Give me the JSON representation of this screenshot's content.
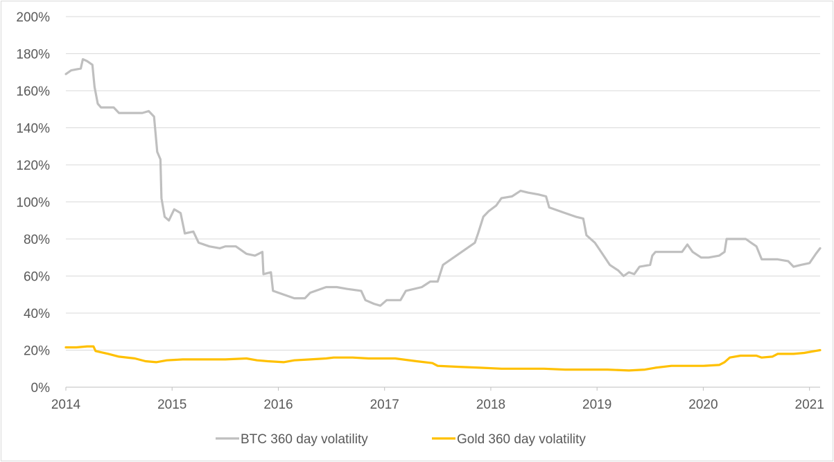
{
  "chart_data": {
    "type": "line",
    "title": "",
    "xlabel": "",
    "ylabel": "",
    "xlim": [
      2014.0,
      2021.1
    ],
    "ylim": [
      0,
      200
    ],
    "y_ticks": [
      "0%",
      "20%",
      "40%",
      "60%",
      "80%",
      "100%",
      "120%",
      "140%",
      "160%",
      "180%",
      "200%"
    ],
    "x_ticks": [
      "2014",
      "2015",
      "2016",
      "2017",
      "2018",
      "2019",
      "2020",
      "2021"
    ],
    "grid": "horizontal",
    "legend_position": "bottom",
    "series": [
      {
        "name": "BTC 360 day volatility",
        "color": "#bfbfbf",
        "points": [
          [
            2014.0,
            169
          ],
          [
            2014.05,
            171
          ],
          [
            2014.14,
            172
          ],
          [
            2014.16,
            177
          ],
          [
            2014.2,
            176
          ],
          [
            2014.25,
            174
          ],
          [
            2014.27,
            162
          ],
          [
            2014.3,
            153
          ],
          [
            2014.33,
            151
          ],
          [
            2014.45,
            151
          ],
          [
            2014.5,
            148
          ],
          [
            2014.6,
            148
          ],
          [
            2014.72,
            148
          ],
          [
            2014.78,
            149
          ],
          [
            2014.83,
            146
          ],
          [
            2014.86,
            127
          ],
          [
            2014.89,
            123
          ],
          [
            2014.9,
            102
          ],
          [
            2014.93,
            92
          ],
          [
            2014.97,
            90
          ],
          [
            2015.02,
            96
          ],
          [
            2015.08,
            94
          ],
          [
            2015.12,
            83
          ],
          [
            2015.2,
            84
          ],
          [
            2015.25,
            78
          ],
          [
            2015.35,
            76
          ],
          [
            2015.45,
            75
          ],
          [
            2015.5,
            76
          ],
          [
            2015.6,
            76
          ],
          [
            2015.7,
            72
          ],
          [
            2015.78,
            71
          ],
          [
            2015.85,
            73
          ],
          [
            2015.86,
            61
          ],
          [
            2015.93,
            62
          ],
          [
            2015.95,
            52
          ],
          [
            2016.05,
            50
          ],
          [
            2016.15,
            48
          ],
          [
            2016.25,
            48
          ],
          [
            2016.3,
            51
          ],
          [
            2016.45,
            54
          ],
          [
            2016.55,
            54
          ],
          [
            2016.65,
            53
          ],
          [
            2016.78,
            52
          ],
          [
            2016.82,
            47
          ],
          [
            2016.9,
            45
          ],
          [
            2016.96,
            44
          ],
          [
            2017.02,
            47
          ],
          [
            2017.15,
            47
          ],
          [
            2017.2,
            52
          ],
          [
            2017.35,
            54
          ],
          [
            2017.43,
            57
          ],
          [
            2017.5,
            57
          ],
          [
            2017.55,
            66
          ],
          [
            2017.7,
            72
          ],
          [
            2017.85,
            78
          ],
          [
            2017.88,
            83
          ],
          [
            2017.93,
            92
          ],
          [
            2017.98,
            95
          ],
          [
            2018.05,
            98
          ],
          [
            2018.1,
            102
          ],
          [
            2018.2,
            103
          ],
          [
            2018.28,
            106
          ],
          [
            2018.35,
            105
          ],
          [
            2018.45,
            104
          ],
          [
            2018.52,
            103
          ],
          [
            2018.55,
            97
          ],
          [
            2018.7,
            94
          ],
          [
            2018.8,
            92
          ],
          [
            2018.87,
            91
          ],
          [
            2018.9,
            82
          ],
          [
            2018.98,
            78
          ],
          [
            2019.05,
            72
          ],
          [
            2019.12,
            66
          ],
          [
            2019.2,
            63
          ],
          [
            2019.25,
            60
          ],
          [
            2019.3,
            62
          ],
          [
            2019.35,
            61
          ],
          [
            2019.4,
            65
          ],
          [
            2019.5,
            66
          ],
          [
            2019.52,
            71
          ],
          [
            2019.55,
            73
          ],
          [
            2019.7,
            73
          ],
          [
            2019.8,
            73
          ],
          [
            2019.85,
            77
          ],
          [
            2019.9,
            73
          ],
          [
            2019.98,
            70
          ],
          [
            2020.05,
            70
          ],
          [
            2020.15,
            71
          ],
          [
            2020.2,
            73
          ],
          [
            2020.22,
            80
          ],
          [
            2020.3,
            80
          ],
          [
            2020.4,
            80
          ],
          [
            2020.45,
            78
          ],
          [
            2020.5,
            76
          ],
          [
            2020.55,
            69
          ],
          [
            2020.7,
            69
          ],
          [
            2020.8,
            68
          ],
          [
            2020.85,
            65
          ],
          [
            2020.92,
            66
          ],
          [
            2021.0,
            67
          ],
          [
            2021.06,
            72
          ],
          [
            2021.1,
            75
          ]
        ]
      },
      {
        "name": "Gold 360 day volatility",
        "color": "#ffc000",
        "points": [
          [
            2014.0,
            21.5
          ],
          [
            2014.1,
            21.5
          ],
          [
            2014.2,
            22
          ],
          [
            2014.26,
            22
          ],
          [
            2014.28,
            19.5
          ],
          [
            2014.4,
            18
          ],
          [
            2014.5,
            16.5
          ],
          [
            2014.65,
            15.5
          ],
          [
            2014.75,
            14
          ],
          [
            2014.85,
            13.5
          ],
          [
            2014.95,
            14.5
          ],
          [
            2015.1,
            15
          ],
          [
            2015.3,
            15
          ],
          [
            2015.5,
            15
          ],
          [
            2015.7,
            15.5
          ],
          [
            2015.8,
            14.5
          ],
          [
            2015.9,
            14
          ],
          [
            2016.05,
            13.5
          ],
          [
            2016.15,
            14.5
          ],
          [
            2016.3,
            15
          ],
          [
            2016.45,
            15.5
          ],
          [
            2016.52,
            16
          ],
          [
            2016.7,
            16
          ],
          [
            2016.85,
            15.5
          ],
          [
            2017.1,
            15.5
          ],
          [
            2017.3,
            14
          ],
          [
            2017.45,
            13
          ],
          [
            2017.5,
            11.5
          ],
          [
            2017.7,
            11
          ],
          [
            2017.9,
            10.5
          ],
          [
            2018.1,
            10
          ],
          [
            2018.3,
            10
          ],
          [
            2018.5,
            10
          ],
          [
            2018.7,
            9.5
          ],
          [
            2018.9,
            9.5
          ],
          [
            2019.1,
            9.5
          ],
          [
            2019.3,
            9
          ],
          [
            2019.45,
            9.5
          ],
          [
            2019.55,
            10.5
          ],
          [
            2019.7,
            11.5
          ],
          [
            2019.85,
            11.5
          ],
          [
            2020.0,
            11.5
          ],
          [
            2020.15,
            12
          ],
          [
            2020.2,
            13.5
          ],
          [
            2020.25,
            16
          ],
          [
            2020.35,
            17
          ],
          [
            2020.5,
            17
          ],
          [
            2020.55,
            16
          ],
          [
            2020.65,
            16.5
          ],
          [
            2020.7,
            18
          ],
          [
            2020.85,
            18
          ],
          [
            2020.95,
            18.5
          ],
          [
            2021.05,
            19.5
          ],
          [
            2021.1,
            20
          ]
        ]
      }
    ]
  }
}
